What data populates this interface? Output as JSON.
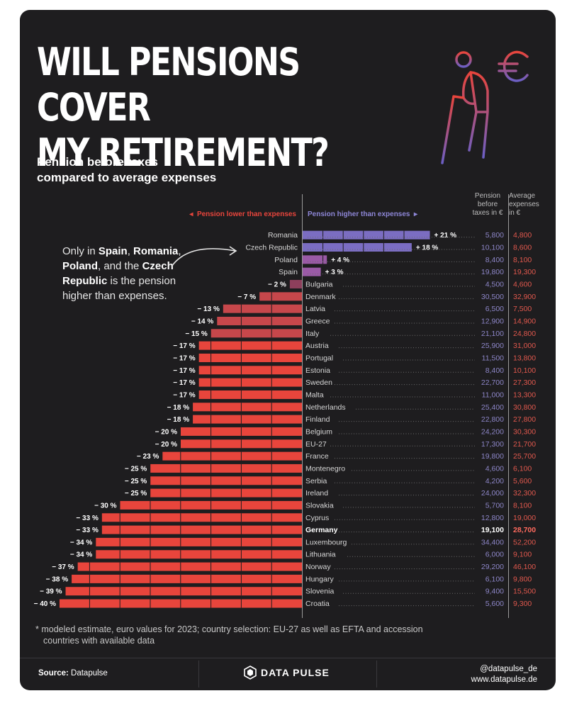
{
  "header": {
    "title_line1": "WILL PENSIONS COVER",
    "title_line2": "MY RETIREMENT?",
    "subtitle_line1": "Pension before taxes",
    "subtitle_line2": "compared to average expenses"
  },
  "legend": {
    "lower": "Pension lower than expenses",
    "higher": "Pension higher than expenses"
  },
  "columns": {
    "pension": [
      "Pension",
      "before",
      "taxes in €"
    ],
    "expenses": [
      "Average",
      "expenses",
      "in €"
    ]
  },
  "annotation": {
    "t1": "Only in ",
    "b1": "Spain",
    "t2": ", ",
    "b2": "Romania",
    "t3": ", ",
    "b3": "Poland",
    "t4": ", and the ",
    "b4": "Czech Republic",
    "t5": " is the pension higher than expenses."
  },
  "colors": {
    "negative": "#e8453c",
    "positive": "#7b6dc2",
    "pension_text": "#8d86c8",
    "expenses_text": "#e0584d",
    "background": "#1e1d1f"
  },
  "chart_data": {
    "type": "bar",
    "orientation": "horizontal",
    "unit": "%",
    "xlim": [
      -40,
      21
    ],
    "highlight": "Germany",
    "categories": [
      "Romania",
      "Czech Republic",
      "Poland",
      "Spain",
      "Bulgaria",
      "Denmark",
      "Latvia",
      "Greece",
      "Italy",
      "Austria",
      "Portugal",
      "Estonia",
      "Sweden",
      "Malta",
      "Netherlands",
      "Finland",
      "Belgium",
      "EU-27",
      "France",
      "Montenegro",
      "Serbia",
      "Ireland",
      "Slovakia",
      "Cyprus",
      "Germany",
      "Luxembourg",
      "Lithuania",
      "Norway",
      "Hungary",
      "Slovenia",
      "Croatia"
    ],
    "values": [
      21,
      18,
      4,
      3,
      -2,
      -7,
      -13,
      -14,
      -15,
      -17,
      -17,
      -17,
      -17,
      -17,
      -18,
      -18,
      -20,
      -20,
      -23,
      -25,
      -25,
      -25,
      -30,
      -33,
      -33,
      -34,
      -34,
      -37,
      -38,
      -39,
      -40
    ],
    "value_labels": [
      "+ 21 %",
      "+ 18 %",
      "+ 4 %",
      "+ 3 %",
      "− 2 %",
      "− 7 %",
      "− 13 %",
      "− 14 %",
      "− 15 %",
      "− 17 %",
      "− 17 %",
      "− 17 %",
      "− 17 %",
      "− 17 %",
      "− 18 %",
      "− 18 %",
      "− 20 %",
      "− 20 %",
      "− 23 %",
      "− 25 %",
      "− 25 %",
      "− 25 %",
      "− 30 %",
      "− 33 %",
      "− 33 %",
      "− 34 %",
      "− 34 %",
      "− 37 %",
      "− 38 %",
      "− 39 %",
      "− 40 %"
    ],
    "pension": [
      "5,800",
      "10,100",
      "8,400",
      "19,800",
      "4,500",
      "30,500",
      "6,500",
      "12,900",
      "21,100",
      "25,900",
      "11,500",
      "8,400",
      "22,700",
      "11,000",
      "25,400",
      "22,800",
      "24,200",
      "17,300",
      "19,800",
      "4,600",
      "4,200",
      "24,000",
      "5,700",
      "12,800",
      "19,100",
      "34,400",
      "6,000",
      "29,200",
      "6,100",
      "9,400",
      "5,600"
    ],
    "expenses": [
      "4,800",
      "8,600",
      "8,100",
      "19,300",
      "4,600",
      "32,900",
      "7,500",
      "14,900",
      "24,800",
      "31,000",
      "13,800",
      "10,100",
      "27,300",
      "13,300",
      "30,800",
      "27,800",
      "30,300",
      "21,700",
      "25,700",
      "6,100",
      "5,600",
      "32,300",
      "8,100",
      "19,000",
      "28,700",
      "52,200",
      "9,100",
      "46,100",
      "9,800",
      "15,500",
      "9,300"
    ]
  },
  "footnote": {
    "line1": "* modeled estimate, euro values for 2023; country selection: EU-27 as well as EFTA and accession",
    "line2": "countries with available data"
  },
  "footer": {
    "source_label": "Source:",
    "source_value": " Datapulse",
    "brand": "DATA PULSE",
    "handle1": "@datapulse_de",
    "handle2": "www.datapulse.de"
  }
}
